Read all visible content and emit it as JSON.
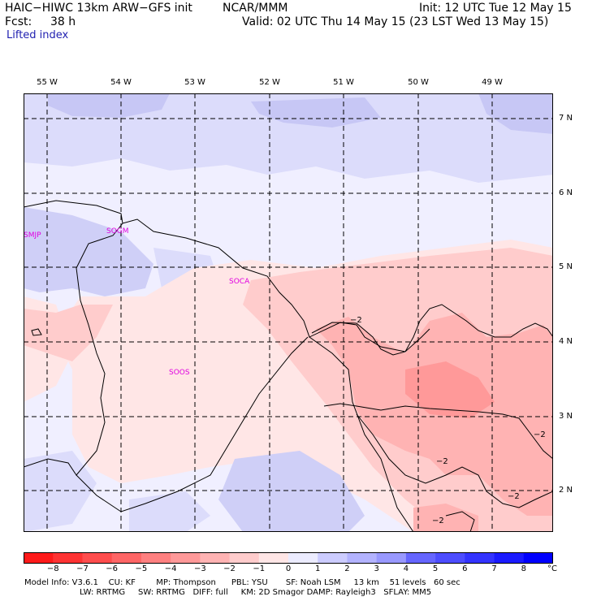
{
  "header": {
    "title_left": "HAIC−HIWC 13km ARW−GFS init",
    "title_center": "NCAR/MMM",
    "init": "Init: 12 UTC Tue 12 May 15",
    "fcst_label": "Fcst:",
    "fcst_value": "38 h",
    "valid": "Valid: 02 UTC Thu 14 May 15 (23 LST Wed 13 May 15)",
    "field": "Lifted index"
  },
  "map": {
    "longitudes": [
      "55 W",
      "54 W",
      "53 W",
      "52 W",
      "51 W",
      "50 W",
      "49 W"
    ],
    "latitudes": [
      "7 N",
      "6 N",
      "5 N",
      "4 N",
      "3 N",
      "2 N"
    ],
    "stations": [
      "SMJP",
      "SOGM",
      "SOCA",
      "SOOS"
    ],
    "contour_labels": [
      "−2",
      "−2",
      "−2",
      "−2",
      "−2",
      "−2"
    ]
  },
  "colorbar": {
    "labels": [
      "−8",
      "−7",
      "−6",
      "−5",
      "−4",
      "−3",
      "−2",
      "−1",
      "0",
      "1",
      "2",
      "3",
      "4",
      "5",
      "6",
      "7",
      "8"
    ],
    "unit": "°C",
    "colors": [
      "#ff1a1a",
      "#ff3333",
      "#ff4d4d",
      "#ff6666",
      "#ff8080",
      "#ff9999",
      "#ffb3b3",
      "#ffcccc",
      "#ffe6e6",
      "#ececff",
      "#ccccff",
      "#b3b3ff",
      "#9999ff",
      "#6666ff",
      "#4d4dff",
      "#3333ff",
      "#1a1aff",
      "#0000ff"
    ]
  },
  "footer": {
    "line1": "Model Info: V3.6.1    CU: KF        MP: Thompson      PBL: YSU       SF: Noah LSM     13 km    51 levels   60 sec",
    "line2": "LW: RRTMG     SW: RRTMG   DIFF: full     KM: 2D Smagor DAMP: Rayleigh3   SFLAY: MM5"
  }
}
